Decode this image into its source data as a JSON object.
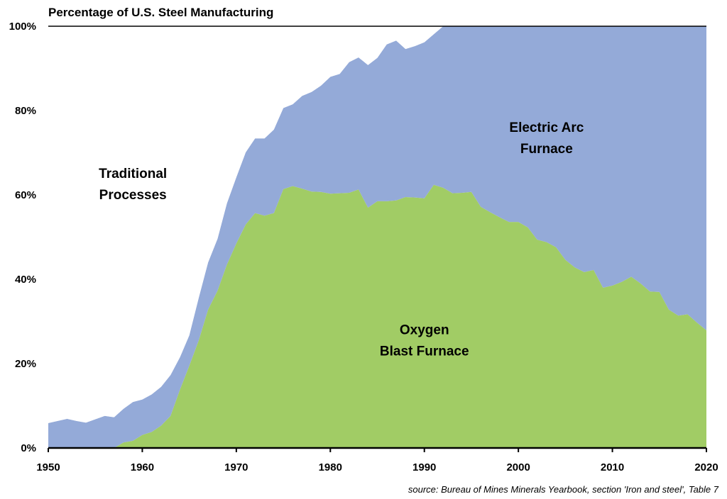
{
  "chart_data": {
    "type": "area",
    "stacked": true,
    "title": "Percentage of U.S. Steel Manufacturing",
    "xlabel": "",
    "ylabel": "",
    "xlim": [
      1950,
      2020
    ],
    "ylim": [
      0,
      100
    ],
    "grid": false,
    "x_ticks": [
      1950,
      1960,
      1970,
      1980,
      1990,
      2000,
      2010,
      2020
    ],
    "x_tick_labels": [
      "1950",
      "1960",
      "1970",
      "1980",
      "1990",
      "2000",
      "2010",
      "2020"
    ],
    "y_ticks": [
      0,
      20,
      40,
      60,
      80,
      100
    ],
    "y_tick_labels": [
      "0%",
      "20%",
      "40%",
      "60%",
      "80%",
      "100%"
    ],
    "x": [
      1950,
      1951,
      1952,
      1953,
      1954,
      1955,
      1956,
      1957,
      1958,
      1959,
      1960,
      1961,
      1962,
      1963,
      1964,
      1965,
      1966,
      1967,
      1968,
      1969,
      1970,
      1971,
      1972,
      1973,
      1974,
      1975,
      1976,
      1977,
      1978,
      1979,
      1980,
      1981,
      1982,
      1983,
      1984,
      1985,
      1986,
      1987,
      1988,
      1989,
      1990,
      1991,
      1992,
      1993,
      1994,
      1995,
      1996,
      1997,
      1998,
      1999,
      2000,
      2001,
      2002,
      2003,
      2004,
      2005,
      2006,
      2007,
      2008,
      2009,
      2010,
      2011,
      2012,
      2013,
      2014,
      2015,
      2016,
      2017,
      2018,
      2019,
      2020
    ],
    "series": [
      {
        "name": "Oxygen Blast Furnace",
        "color": "#A1CC65",
        "values": [
          0,
          0,
          0,
          0,
          0,
          0,
          0,
          0,
          1.3,
          1.7,
          3.1,
          3.8,
          5.3,
          7.6,
          13.8,
          19.5,
          25.5,
          32.8,
          37.3,
          43.5,
          48.5,
          53.0,
          55.7,
          55.1,
          55.7,
          61.4,
          62.1,
          61.5,
          60.8,
          60.7,
          60.3,
          60.4,
          60.5,
          61.3,
          57.0,
          58.5,
          58.5,
          58.7,
          59.5,
          59.4,
          59.2,
          62.4,
          61.7,
          60.4,
          60.5,
          60.7,
          57.2,
          55.9,
          54.7,
          53.6,
          53.6,
          52.3,
          49.4,
          48.8,
          47.6,
          44.6,
          42.8,
          41.7,
          42.2,
          38.0,
          38.5,
          39.4,
          40.6,
          39.0,
          37.1,
          37.0,
          32.8,
          31.4,
          31.7,
          29.7,
          27.9
        ]
      },
      {
        "name": "Electric Arc Furnace",
        "color": "#94AAD8",
        "values": [
          5.9,
          6.4,
          6.9,
          6.4,
          6.0,
          6.8,
          7.6,
          7.3,
          8.0,
          9.2,
          8.4,
          8.9,
          9.2,
          9.7,
          7.7,
          7.2,
          10.1,
          11.2,
          12.3,
          14.5,
          15.7,
          17.1,
          17.7,
          18.3,
          19.8,
          19.2,
          19.4,
          22.0,
          23.6,
          25.2,
          27.7,
          28.3,
          31.0,
          31.3,
          33.8,
          34.0,
          37.2,
          37.9,
          35.1,
          35.9,
          37.0,
          35.7,
          38.3,
          39.6,
          39.5,
          39.3,
          42.8,
          44.1,
          45.3,
          46.4,
          46.4,
          47.7,
          50.6,
          51.2,
          52.4,
          55.4,
          57.2,
          58.3,
          57.8,
          62.0,
          61.5,
          60.6,
          59.4,
          61.0,
          62.9,
          63.0,
          67.2,
          68.6,
          68.3,
          70.3,
          72.1
        ]
      },
      {
        "name": "Traditional Processes",
        "color": "#FFFFFF",
        "values": [
          94.1,
          93.6,
          93.1,
          93.6,
          94.0,
          93.2,
          92.4,
          92.7,
          90.7,
          89.1,
          88.5,
          87.3,
          85.5,
          82.7,
          78.5,
          73.3,
          64.4,
          56.0,
          50.4,
          42.0,
          35.8,
          29.9,
          26.6,
          26.6,
          24.5,
          19.4,
          18.5,
          16.5,
          15.6,
          14.1,
          12.0,
          11.3,
          8.5,
          7.4,
          9.2,
          7.5,
          4.3,
          3.4,
          5.4,
          4.7,
          3.8,
          1.9,
          0,
          0,
          0,
          0,
          0,
          0,
          0,
          0,
          0,
          0,
          0,
          0,
          0,
          0,
          0,
          0,
          0,
          0,
          0,
          0,
          0,
          0,
          0,
          0,
          0,
          0,
          0,
          0,
          0
        ]
      }
    ],
    "annotations": [
      {
        "id": "traditional",
        "lines": [
          "Traditional",
          "Processes"
        ],
        "x": 1959,
        "y": 64
      },
      {
        "id": "eaf",
        "lines": [
          "Electric Arc",
          "Furnace"
        ],
        "x": 2003,
        "y": 75
      },
      {
        "id": "obf",
        "lines": [
          "Oxygen",
          "Blast Furnace"
        ],
        "x": 1990,
        "y": 27
      }
    ],
    "source": "source: Bureau of Mines Minerals Yearbook, section 'Iron and steel', Table 7"
  }
}
